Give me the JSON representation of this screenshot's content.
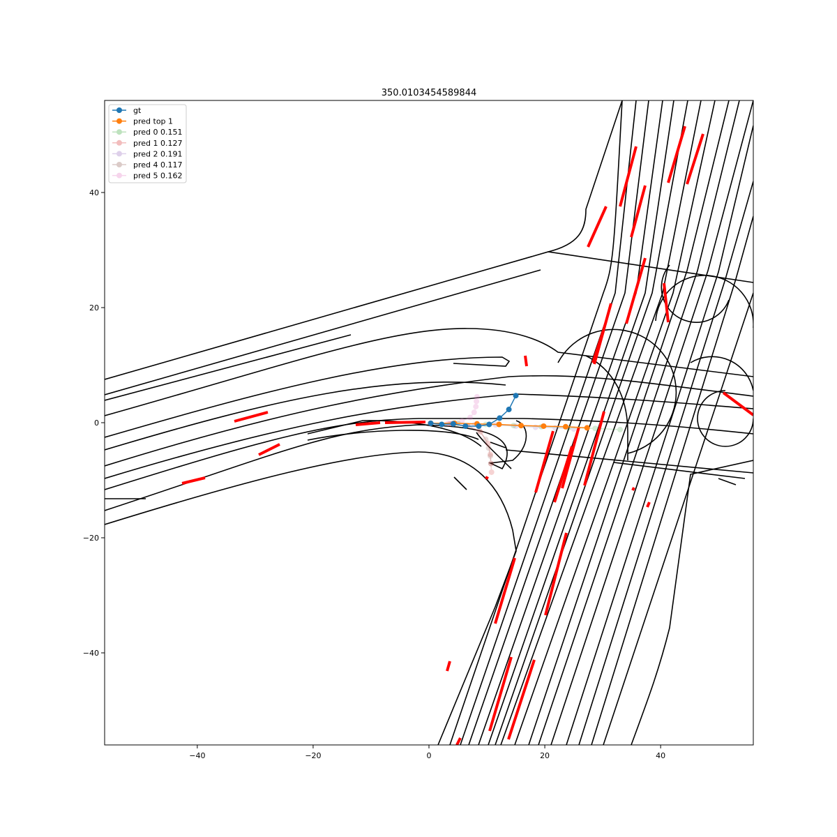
{
  "chart_data": {
    "type": "line",
    "title": "350.0103454589844",
    "xlim": [
      -56,
      56
    ],
    "ylim": [
      -56,
      56
    ],
    "xticks": [
      -40,
      -20,
      0,
      20,
      40
    ],
    "yticks": [
      -40,
      -20,
      0,
      20,
      40
    ],
    "xtick_labels": [
      "−40",
      "−20",
      "0",
      "20",
      "40"
    ],
    "ytick_labels": [
      "−40",
      "−20",
      "0",
      "20",
      "40"
    ],
    "grid": false,
    "legend_position": "upper-left",
    "colors": {
      "gt": "#1f77b4",
      "pred_top1": "#ff7f0e",
      "pred0": "#2ca02c",
      "pred1": "#d62728",
      "pred2": "#9467bd",
      "pred4": "#8c564b",
      "pred5": "#e377c2",
      "lane_boundary": "#000000",
      "crosswalk_dash": "#ff0000"
    },
    "series": [
      {
        "name": "gt",
        "color": "#1f77b4",
        "alpha": 1.0,
        "x": [
          0.3,
          2.2,
          4.2,
          6.3,
          8.6,
          10.4,
          12.2,
          13.8,
          15.0
        ],
        "y": [
          -0.1,
          -0.3,
          -0.2,
          -0.6,
          -0.6,
          -0.3,
          0.8,
          2.3,
          4.7
        ]
      },
      {
        "name": "pred top 1",
        "color": "#ff7f0e",
        "alpha": 1.0,
        "x": [
          0.3,
          4.4,
          8.3,
          12.1,
          15.9,
          19.8,
          23.6,
          27.3
        ],
        "y": [
          -0.1,
          -0.1,
          -0.2,
          -0.3,
          -0.5,
          -0.6,
          -0.7,
          -0.9
        ]
      },
      {
        "name": "pred 0 0.151",
        "color": "#2ca02c",
        "alpha": 0.2,
        "x": [
          0.3,
          5.0,
          9.8,
          14.6,
          19.4,
          24.1,
          28.7,
          33.0
        ],
        "y": [
          -0.1,
          -0.1,
          -0.3,
          -0.5,
          -0.7,
          -0.9,
          -1.0,
          -1.2
        ]
      },
      {
        "name": "pred 1 0.127",
        "color": "#d62728",
        "alpha": 0.2,
        "x": [
          0.3,
          3.6,
          6.6,
          8.9,
          10.2,
          10.6,
          10.7,
          10.8
        ],
        "y": [
          -0.1,
          -0.2,
          -0.5,
          -1.6,
          -3.6,
          -5.5,
          -7.1,
          -8.6
        ]
      },
      {
        "name": "pred 2 0.191",
        "color": "#9467bd",
        "alpha": 0.2,
        "x": [
          0.3,
          4.1,
          7.9,
          11.5,
          15.0,
          18.4,
          21.8,
          25.0
        ],
        "y": [
          -0.1,
          -0.1,
          -0.3,
          -0.4,
          -0.6,
          -0.8,
          -0.9,
          -1.1
        ]
      },
      {
        "name": "pred 4 0.117",
        "color": "#8c564b",
        "alpha": 0.2,
        "x": [
          0.3,
          3.9,
          6.7,
          8.7,
          9.8,
          10.3,
          10.6,
          10.7
        ],
        "y": [
          -0.1,
          -0.2,
          -0.6,
          -1.4,
          -2.9,
          -4.4,
          -5.8,
          -7.1
        ]
      },
      {
        "name": "pred 5 0.162",
        "color": "#e377c2",
        "alpha": 0.25,
        "x": [
          0.3,
          3.3,
          5.7,
          7.1,
          7.8,
          8.1,
          8.2,
          8.3
        ],
        "y": [
          -0.1,
          -0.1,
          0.3,
          0.9,
          1.8,
          2.8,
          3.7,
          4.5
        ]
      }
    ]
  }
}
